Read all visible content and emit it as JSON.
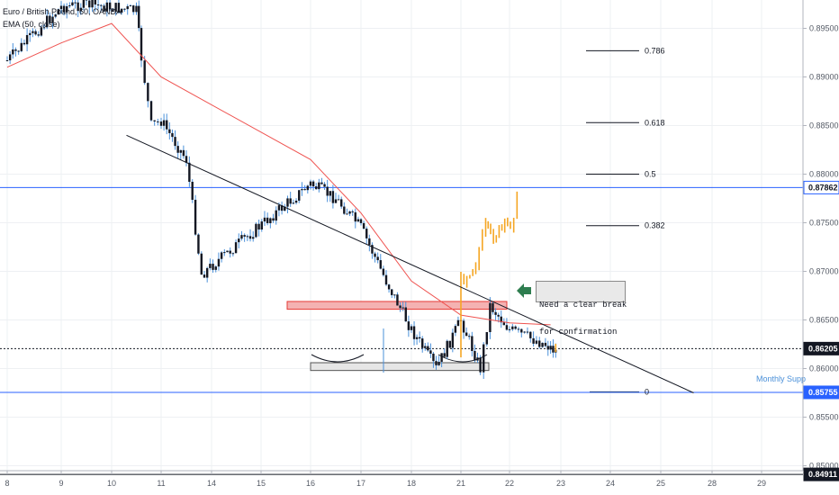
{
  "title": "Euro / British Pound, 60, OANDA",
  "indicator": "EMA (50, close)",
  "price_axis_labels": [
    "0.89500",
    "0.89000",
    "0.88500",
    "0.88000",
    "0.87500",
    "0.87000",
    "0.86500",
    "0.86000",
    "0.85500",
    "0.85000"
  ],
  "price_tags": [
    {
      "label": "0.87862",
      "price": 0.87862,
      "style": "outline"
    },
    {
      "label": "0.86205",
      "price": 0.86205,
      "style": "dark"
    },
    {
      "label": "0.85755",
      "price": 0.85755,
      "style": "blue"
    },
    {
      "label": "0.84911",
      "price": 0.84911,
      "style": "dark"
    }
  ],
  "time_axis_labels": [
    "8",
    "9",
    "10",
    "11",
    "14",
    "15",
    "16",
    "17",
    "18",
    "21",
    "22",
    "23",
    "24",
    "25",
    "28",
    "29"
  ],
  "fib_levels": [
    {
      "label": "0.786",
      "price": 0.8927
    },
    {
      "label": "0.618",
      "price": 0.8853
    },
    {
      "label": "0.5",
      "price": 0.88
    },
    {
      "label": "0.382",
      "price": 0.8747
    },
    {
      "label": "0",
      "price": 0.8576
    }
  ],
  "annotations": {
    "monthly_support": "Monthly Supp",
    "note_line1": "Need a clear break",
    "note_line2": "for confirmation"
  },
  "colors": {
    "up_candle": "#131722",
    "wick": "#4a90d9",
    "ema": "#ef5350",
    "projection": "#f5a623",
    "resistance_fill": "#f4b2b2",
    "resistance_stroke": "#e53935",
    "support_fill": "#e6e6e6",
    "blue_line": "#2962ff",
    "arrow": "#2e7d4f"
  },
  "chart_data": {
    "type": "candlestick",
    "symbol": "EURGBP",
    "timeframe": "60",
    "ylim": [
      0.846,
      0.8975
    ],
    "x_ticks": [
      "8",
      "9",
      "10",
      "11",
      "14",
      "15",
      "16",
      "17",
      "18",
      "21",
      "22",
      "23",
      "24",
      "25",
      "28",
      "29"
    ],
    "price_path": [
      {
        "x": "8",
        "y": 0.8917
      },
      {
        "x": "9",
        "y": 0.8972
      },
      {
        "x": "9.5",
        "y": 0.8975
      },
      {
        "x": "10.5",
        "y": 0.8968
      },
      {
        "x": "10.6",
        "y": 0.892
      },
      {
        "x": "10.8",
        "y": 0.885
      },
      {
        "x": "11",
        "y": 0.8855
      },
      {
        "x": "11.5",
        "y": 0.8815
      },
      {
        "x": "11.8",
        "y": 0.8697
      },
      {
        "x": "14",
        "y": 0.879
      },
      {
        "x": "14.5",
        "y": 0.8775
      },
      {
        "x": "15",
        "y": 0.8745
      },
      {
        "x": "15.5",
        "y": 0.869
      },
      {
        "x": "16",
        "y": 0.864
      },
      {
        "x": "16.5",
        "y": 0.86
      },
      {
        "x": "17",
        "y": 0.865
      },
      {
        "x": "17.4",
        "y": 0.86
      },
      {
        "x": "17.6",
        "y": 0.8665
      },
      {
        "x": "18",
        "y": 0.864
      },
      {
        "x": "18.7",
        "y": 0.8625
      },
      {
        "x": "18.9",
        "y": 0.8618
      }
    ],
    "ema_path": [
      {
        "x": "8",
        "y": 0.891
      },
      {
        "x": "9",
        "y": 0.8935
      },
      {
        "x": "10",
        "y": 0.8955
      },
      {
        "x": "11",
        "y": 0.89
      },
      {
        "x": "14",
        "y": 0.8815
      },
      {
        "x": "15",
        "y": 0.876
      },
      {
        "x": "16",
        "y": 0.869
      },
      {
        "x": "17",
        "y": 0.8655
      },
      {
        "x": "18",
        "y": 0.8647
      },
      {
        "x": "18.8",
        "y": 0.8645
      }
    ],
    "projection_path": [
      {
        "x": "18.9",
        "y": 0.862
      },
      {
        "x": "19.0",
        "y": 0.869
      },
      {
        "x": "19.3",
        "y": 0.871
      },
      {
        "x": "19.5",
        "y": 0.8745
      },
      {
        "x": "19.6",
        "y": 0.8735
      },
      {
        "x": "20",
        "y": 0.875
      },
      {
        "x": "20.2",
        "y": 0.8785
      }
    ],
    "trendline": {
      "from": {
        "x": "10.3",
        "y": 0.884
      },
      "to": {
        "x": "23.7",
        "y": 0.8575
      }
    },
    "resistance_zone": [
      0.8661,
      0.8669
    ],
    "support_zone": [
      0.8598,
      0.8606
    ],
    "horizontal_lines": [
      0.87862,
      0.86205,
      0.85755,
      0.84911
    ]
  }
}
